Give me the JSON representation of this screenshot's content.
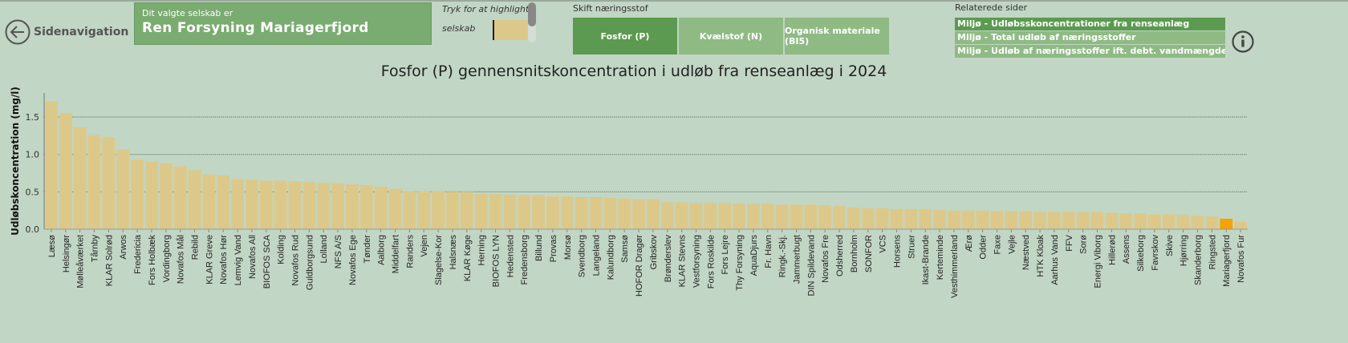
{
  "nav": {
    "back_label": "Sidenavigation",
    "back_icon": "arrow-left-circle-icon"
  },
  "company": {
    "caption": "Dit valgte selskab er",
    "name": "Ren Forsyning Mariagerfjord"
  },
  "highlight": {
    "label_line1": "Tryk for at highlighte",
    "label_line2": "selskab",
    "swatch_color": "#dcc98a"
  },
  "nutrient": {
    "label": "Skift næringsstof",
    "buttons": [
      {
        "label": "Fosfor (P)",
        "active": true
      },
      {
        "label": "Kvælstof (N)",
        "active": false
      },
      {
        "label": "Organisk materiale (BI5)",
        "active": false
      }
    ]
  },
  "related": {
    "label": "Relaterede sider",
    "links": [
      {
        "label": "Miljø - Udløbsskoncentrationer fra renseanlæg",
        "active": true
      },
      {
        "label": "Miljø - Total udløb af næringsstoffer",
        "active": false
      },
      {
        "label": "Miljø - Udløb af næringsstoffer ift. debt. vandmængde i opland",
        "active": false
      }
    ]
  },
  "info_icon": "info-circle-icon",
  "colors": {
    "bar": "#dcc98a",
    "highlight_bar": "#f5a300",
    "active_button": "#5b9a50",
    "inactive_button": "#8fba84",
    "background": "#c1d6c4"
  },
  "chart_data": {
    "type": "bar",
    "title": "Fosfor (P) gennensnitskoncentration i udløb fra renseanlæg i 2024",
    "ylabel": "Udløbskoncentration (mg/l)",
    "xlabel": "",
    "ylim": [
      0,
      1.8
    ],
    "yticks": [
      "0.0",
      "0.5",
      "1.0",
      "1.5"
    ],
    "grid": true,
    "highlighted": "Mariagerfjord",
    "categories": [
      "Læsø",
      "Helsingør",
      "Mølleåværket",
      "Tårnby",
      "KLAR Solrød",
      "Arwos",
      "Fredericia",
      "Fors Holbæk",
      "Vordingborg",
      "Novafos Mål",
      "Rebild",
      "KLAR Greve",
      "Novafos Hør",
      "Lemvig Vand",
      "Novafos All",
      "BIOFOS SCA",
      "Kolding",
      "Novafos Rud",
      "Guldborgsund",
      "Lolland",
      "NFS A/S",
      "Novafos Ege",
      "Tønder",
      "Aalborg",
      "Middelfart",
      "Randers",
      "Vejen",
      "Slagelse-Kor",
      "Halsnæs",
      "KLAR Køge",
      "Herning",
      "BIOFOS LYN",
      "Hedensted",
      "Fredensborg",
      "Billund",
      "Provas",
      "Morsø",
      "Svendborg",
      "Langeland",
      "Kalundborg",
      "Samsø",
      "HOFOR Dragør",
      "Gribskov",
      "Brønderslev",
      "KLAR Stevns",
      "Vestforsyning",
      "Fors Roskilde",
      "Fors Lejre",
      "Thy Forsyning",
      "AquaDjurs",
      "Fr. Havn",
      "Ringk.-Skj.",
      "Jammerbugt",
      "DIN Spildevand",
      "Novafos Fre",
      "Odsherred",
      "Bornholm",
      "SONFOR",
      "VCS",
      "Horsens",
      "Struer",
      "Ikast-Brande",
      "Kerteminde",
      "Vesthimmerland",
      "Ærø",
      "Odder",
      "Faxe",
      "Vejle",
      "Næstved",
      "HTK Kloak",
      "Aarhus Vand",
      "FFV",
      "Sorø",
      "Energi Viborg",
      "Hillerød",
      "Assens",
      "Silkeborg",
      "Favrskov",
      "Skive",
      "Hjørring",
      "Skanderborg",
      "Ringsted",
      "Mariagerfjord",
      "Novafos Fur"
    ],
    "values": [
      1.71,
      1.55,
      1.36,
      1.26,
      1.23,
      1.07,
      0.93,
      0.9,
      0.88,
      0.84,
      0.79,
      0.73,
      0.72,
      0.67,
      0.66,
      0.65,
      0.65,
      0.64,
      0.63,
      0.62,
      0.61,
      0.6,
      0.59,
      0.57,
      0.54,
      0.51,
      0.51,
      0.51,
      0.5,
      0.5,
      0.47,
      0.47,
      0.46,
      0.45,
      0.45,
      0.44,
      0.44,
      0.43,
      0.43,
      0.42,
      0.41,
      0.4,
      0.4,
      0.36,
      0.36,
      0.35,
      0.35,
      0.35,
      0.34,
      0.34,
      0.34,
      0.33,
      0.33,
      0.33,
      0.32,
      0.31,
      0.29,
      0.28,
      0.28,
      0.27,
      0.27,
      0.27,
      0.26,
      0.25,
      0.25,
      0.25,
      0.24,
      0.24,
      0.24,
      0.23,
      0.23,
      0.23,
      0.23,
      0.23,
      0.22,
      0.21,
      0.21,
      0.2,
      0.2,
      0.19,
      0.18,
      0.17,
      0.14,
      0.1
    ]
  }
}
